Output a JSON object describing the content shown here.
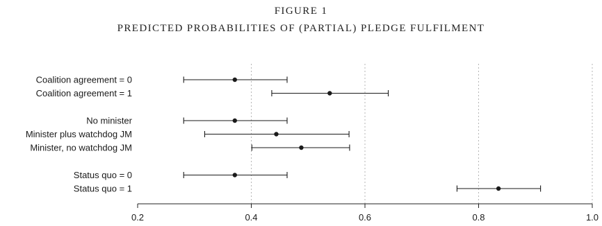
{
  "figure": {
    "label": "FIGURE 1",
    "caption": "PREDICTED PROBABILITIES OF (PARTIAL) PLEDGE FULFILMENT"
  },
  "chart_data": {
    "type": "scatter",
    "subtype": "point-estimate with confidence intervals (dot-and-whisker)",
    "title": "PREDICTED PROBABILITIES OF (PARTIAL) PLEDGE FULFILMENT",
    "xlabel": "",
    "ylabel": "",
    "xlim": [
      0.2,
      1.0
    ],
    "xticks": [
      0.2,
      0.4,
      0.6,
      0.8,
      1.0
    ],
    "xtick_labels": [
      "0.2",
      "0.4",
      "0.6",
      "0.8",
      "1.0"
    ],
    "grid": "vertical dotted lines at 0.4, 0.6, 0.8, 1.0",
    "legend": "none",
    "marker_color": "#1a1a1a",
    "groups": [
      {
        "rows": [
          {
            "label": "Coalition agreement = 0",
            "estimate": 0.371,
            "lower": 0.281,
            "upper": 0.463
          },
          {
            "label": "Coalition agreement = 1",
            "estimate": 0.538,
            "lower": 0.436,
            "upper": 0.641
          }
        ]
      },
      {
        "rows": [
          {
            "label": "No minister",
            "estimate": 0.371,
            "lower": 0.281,
            "upper": 0.463
          },
          {
            "label": "Minister plus watchdog JM",
            "estimate": 0.444,
            "lower": 0.318,
            "upper": 0.572
          },
          {
            "label": "Minister, no watchdog JM",
            "estimate": 0.488,
            "lower": 0.401,
            "upper": 0.573
          }
        ]
      },
      {
        "rows": [
          {
            "label": "Status quo = 0",
            "estimate": 0.371,
            "lower": 0.281,
            "upper": 0.463
          },
          {
            "label": "Status quo = 1",
            "estimate": 0.835,
            "lower": 0.762,
            "upper": 0.909
          }
        ]
      }
    ]
  }
}
